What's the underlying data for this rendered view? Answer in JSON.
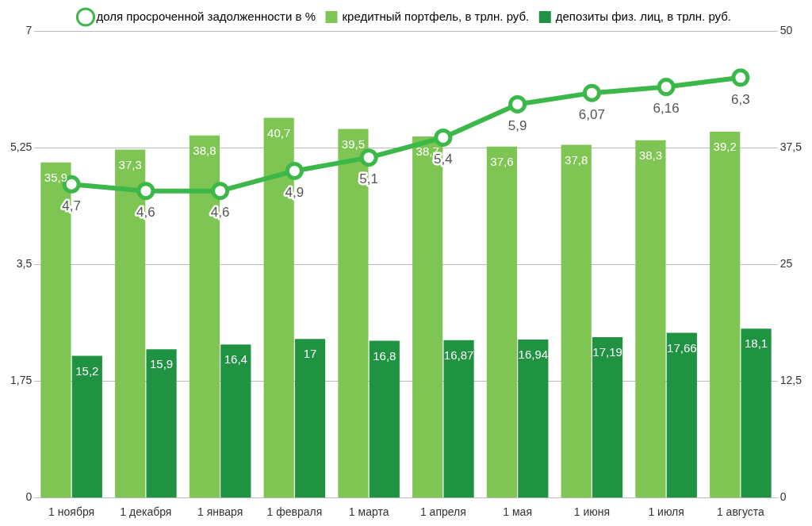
{
  "chart_data": {
    "type": "bar",
    "categories": [
      "1 ноября",
      "1 декабря",
      "1 января",
      "1 февраля",
      "1 марта",
      "1 апреля",
      "1 мая",
      "1 июня",
      "1 июля",
      "1 августа"
    ],
    "series": [
      {
        "name": "доля просроченной задолженности в %",
        "type": "line",
        "color": "#3cb84a",
        "marker": "circle",
        "values": [
          4.7,
          4.6,
          4.6,
          4.9,
          5.1,
          5.4,
          5.9,
          6.07,
          6.16,
          6.3
        ],
        "value_labels": [
          "4,7",
          "4,6",
          "4,6",
          "4,9",
          "5,1",
          "5,4",
          "5,9",
          "6,07",
          "6,16",
          "6,3"
        ]
      },
      {
        "name": "кредитный портфель, в трлн. руб.",
        "axis": "y2",
        "color": "#7ec553",
        "values": [
          35.9,
          37.3,
          38.8,
          40.7,
          39.5,
          38.7,
          37.6,
          37.8,
          38.3,
          39.2
        ],
        "value_labels": [
          "35,9",
          "37,3",
          "38,8",
          "40,7",
          "39,5",
          "38,7",
          "37,6",
          "37,8",
          "38,3",
          "39,2"
        ]
      },
      {
        "name": "депозиты физ. лиц, в трлн. руб.",
        "axis": "y2",
        "color": "#1f9341",
        "values": [
          15.2,
          15.9,
          16.4,
          17,
          16.8,
          16.87,
          16.94,
          17.19,
          17.66,
          18.1
        ],
        "value_labels": [
          "15,2",
          "15,9",
          "16,4",
          "17",
          "16,8",
          "16,87",
          "16,94",
          "17,19",
          "17,66",
          "18,1"
        ]
      }
    ],
    "ylim": [
      0,
      7
    ],
    "yticks": [
      0,
      {
        "value": 1.75,
        "label": "1,75"
      },
      {
        "value": 3.5,
        "label": "3,5"
      },
      {
        "value": 5.25,
        "label": "5,25"
      },
      7
    ],
    "y2lim": [
      0,
      50
    ],
    "y2ticks": [
      0,
      {
        "value": 12.5,
        "label": "12,5"
      },
      25,
      {
        "value": 37.5,
        "label": "37,5"
      },
      50
    ],
    "grid": "y",
    "legend": "top"
  }
}
